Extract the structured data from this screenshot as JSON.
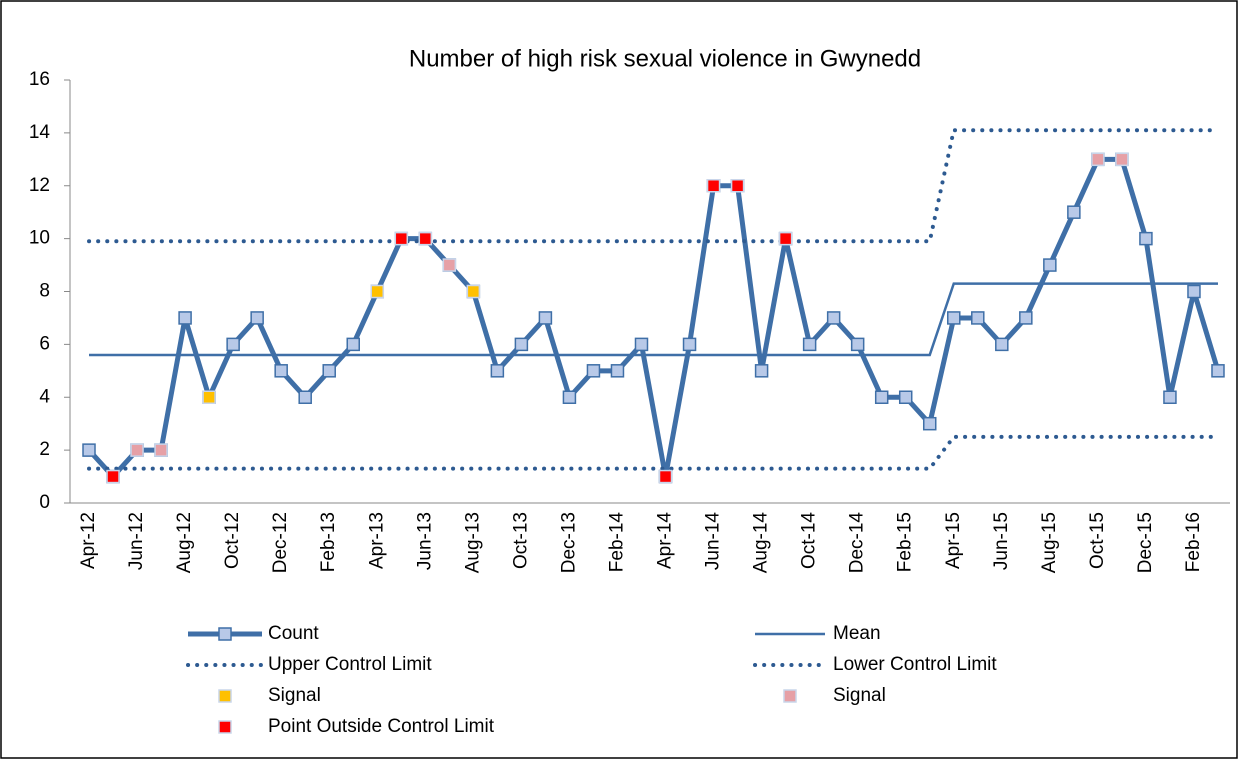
{
  "chart_data": {
    "type": "line",
    "title": "Number of high risk sexual violence in Gwynedd",
    "categories": [
      "Apr-12",
      null,
      "Jun-12",
      null,
      "Aug-12",
      null,
      "Oct-12",
      null,
      "Dec-12",
      null,
      "Feb-13",
      null,
      "Apr-13",
      null,
      "Jun-13",
      null,
      "Aug-13",
      null,
      "Oct-13",
      null,
      "Dec-13",
      null,
      "Feb-14",
      null,
      "Apr-14",
      null,
      "Jun-14",
      null,
      "Aug-14",
      null,
      "Oct-14",
      null,
      "Dec-14",
      null,
      "Feb-15",
      null,
      "Apr-15",
      null,
      "Jun-15",
      null,
      "Aug-15",
      null,
      "Oct-15",
      null,
      "Dec-15",
      null,
      "Feb-16",
      null
    ],
    "ylim": [
      0,
      16
    ],
    "yticks": [
      0,
      2,
      4,
      6,
      8,
      10,
      12,
      14,
      16
    ],
    "grid": false,
    "series": [
      {
        "name": "Count",
        "color": "#3f6fa7",
        "style": "line-marker",
        "marker_color": "#b8c9e8",
        "values": [
          2,
          1,
          2,
          2,
          7,
          4,
          6,
          7,
          5,
          4,
          5,
          6,
          8,
          10,
          10,
          9,
          8,
          5,
          6,
          7,
          4,
          5,
          5,
          6,
          1,
          6,
          12,
          12,
          5,
          10,
          6,
          7,
          6,
          4,
          4,
          3,
          7,
          7,
          6,
          7,
          9,
          11,
          13,
          13,
          10,
          4,
          8,
          5
        ]
      },
      {
        "name": "Mean",
        "color": "#3f6fa7",
        "style": "line",
        "values": [
          5.6,
          5.6,
          5.6,
          5.6,
          5.6,
          5.6,
          5.6,
          5.6,
          5.6,
          5.6,
          5.6,
          5.6,
          5.6,
          5.6,
          5.6,
          5.6,
          5.6,
          5.6,
          5.6,
          5.6,
          5.6,
          5.6,
          5.6,
          5.6,
          5.6,
          5.6,
          5.6,
          5.6,
          5.6,
          5.6,
          5.6,
          5.6,
          5.6,
          5.6,
          5.6,
          5.6,
          8.3,
          8.3,
          8.3,
          8.3,
          8.3,
          8.3,
          8.3,
          8.3,
          8.3,
          8.3,
          8.3,
          8.3
        ]
      },
      {
        "name": "Upper Control Limit",
        "color": "#2d5a91",
        "style": "dotted",
        "values": [
          9.9,
          9.9,
          9.9,
          9.9,
          9.9,
          9.9,
          9.9,
          9.9,
          9.9,
          9.9,
          9.9,
          9.9,
          9.9,
          9.9,
          9.9,
          9.9,
          9.9,
          9.9,
          9.9,
          9.9,
          9.9,
          9.9,
          9.9,
          9.9,
          9.9,
          9.9,
          9.9,
          9.9,
          9.9,
          9.9,
          9.9,
          9.9,
          9.9,
          9.9,
          9.9,
          9.9,
          14.1,
          14.1,
          14.1,
          14.1,
          14.1,
          14.1,
          14.1,
          14.1,
          14.1,
          14.1,
          14.1,
          14.1
        ]
      },
      {
        "name": "Lower Control Limit",
        "color": "#2d5a91",
        "style": "dotted",
        "values": [
          1.3,
          1.3,
          1.3,
          1.3,
          1.3,
          1.3,
          1.3,
          1.3,
          1.3,
          1.3,
          1.3,
          1.3,
          1.3,
          1.3,
          1.3,
          1.3,
          1.3,
          1.3,
          1.3,
          1.3,
          1.3,
          1.3,
          1.3,
          1.3,
          1.3,
          1.3,
          1.3,
          1.3,
          1.3,
          1.3,
          1.3,
          1.3,
          1.3,
          1.3,
          1.3,
          1.3,
          2.5,
          2.5,
          2.5,
          2.5,
          2.5,
          2.5,
          2.5,
          2.5,
          2.5,
          2.5,
          2.5,
          2.5
        ]
      },
      {
        "name": "Signal",
        "color": "#ffc000",
        "style": "marker",
        "values": [
          null,
          null,
          null,
          null,
          null,
          4,
          null,
          null,
          null,
          null,
          null,
          null,
          8,
          null,
          null,
          null,
          8,
          null,
          null,
          null,
          null,
          null,
          null,
          null,
          null,
          null,
          null,
          null,
          null,
          null,
          null,
          null,
          null,
          null,
          null,
          null,
          null,
          null,
          null,
          null,
          null,
          null,
          null,
          null,
          null,
          null,
          null,
          null
        ]
      },
      {
        "name": "Signal",
        "color": "#e6a0a6",
        "style": "marker",
        "values": [
          null,
          null,
          2,
          2,
          null,
          null,
          null,
          null,
          null,
          null,
          null,
          null,
          null,
          null,
          null,
          9,
          null,
          null,
          null,
          null,
          null,
          null,
          null,
          null,
          null,
          null,
          null,
          null,
          null,
          null,
          null,
          null,
          null,
          null,
          null,
          null,
          null,
          null,
          null,
          null,
          null,
          null,
          13,
          13,
          null,
          null,
          null,
          null
        ]
      },
      {
        "name": "Point Outside Control Limit",
        "color": "#ff0000",
        "style": "marker",
        "values": [
          null,
          1,
          null,
          null,
          null,
          null,
          null,
          null,
          null,
          null,
          null,
          null,
          null,
          10,
          10,
          null,
          null,
          null,
          null,
          null,
          null,
          null,
          null,
          null,
          1,
          null,
          12,
          12,
          null,
          10,
          null,
          null,
          null,
          null,
          null,
          null,
          null,
          null,
          null,
          null,
          null,
          null,
          null,
          null,
          null,
          null,
          null,
          null
        ]
      }
    ]
  }
}
